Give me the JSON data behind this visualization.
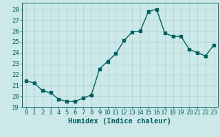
{
  "x": [
    0,
    1,
    2,
    3,
    4,
    5,
    6,
    7,
    8,
    9,
    10,
    11,
    12,
    13,
    14,
    15,
    16,
    17,
    18,
    19,
    20,
    21,
    22,
    23
  ],
  "y": [
    21.4,
    21.2,
    20.5,
    20.3,
    19.7,
    19.5,
    19.5,
    19.8,
    20.1,
    22.5,
    23.2,
    23.9,
    25.1,
    25.9,
    26.0,
    27.8,
    28.0,
    25.8,
    25.5,
    25.5,
    24.3,
    24.0,
    23.7,
    24.7
  ],
  "line_color": "#006060",
  "bg_color": "#cce8e8",
  "grid_color": "#b0d0d0",
  "xlabel": "Humidex (Indice chaleur)",
  "xlim": [
    -0.5,
    23.5
  ],
  "ylim": [
    19,
    28.6
  ],
  "yticks": [
    19,
    20,
    21,
    22,
    23,
    24,
    25,
    26,
    27,
    28
  ],
  "xticks": [
    0,
    1,
    2,
    3,
    4,
    5,
    6,
    7,
    8,
    9,
    10,
    11,
    12,
    13,
    14,
    15,
    16,
    17,
    18,
    19,
    20,
    21,
    22,
    23
  ],
  "xlabel_fontsize": 7.5,
  "tick_fontsize": 6.5,
  "line_width": 1.0,
  "marker_size": 2.5
}
